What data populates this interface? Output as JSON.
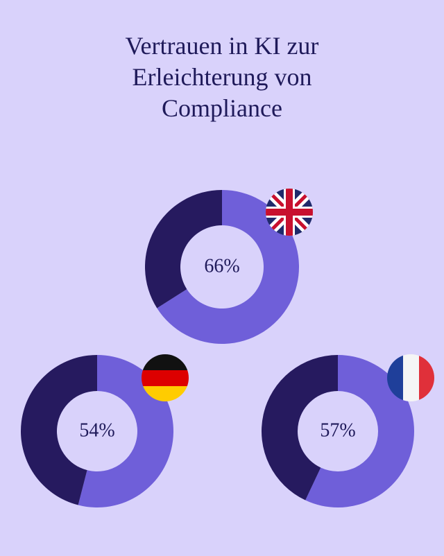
{
  "title": "Vertrauen in KI zur Erleichterung von Compliance",
  "chart_data": [
    {
      "type": "donut",
      "values": [
        66,
        34
      ],
      "colors": [
        "#6f5fd9",
        "#261a5f"
      ],
      "center_label": "66%"
    },
    {
      "type": "donut",
      "values": [
        54,
        46
      ],
      "colors": [
        "#6f5fd9",
        "#261a5f"
      ],
      "center_label": "54%"
    },
    {
      "type": "donut",
      "values": [
        57,
        43
      ],
      "colors": [
        "#6f5fd9",
        "#261a5f"
      ],
      "center_label": "57%"
    }
  ]
}
